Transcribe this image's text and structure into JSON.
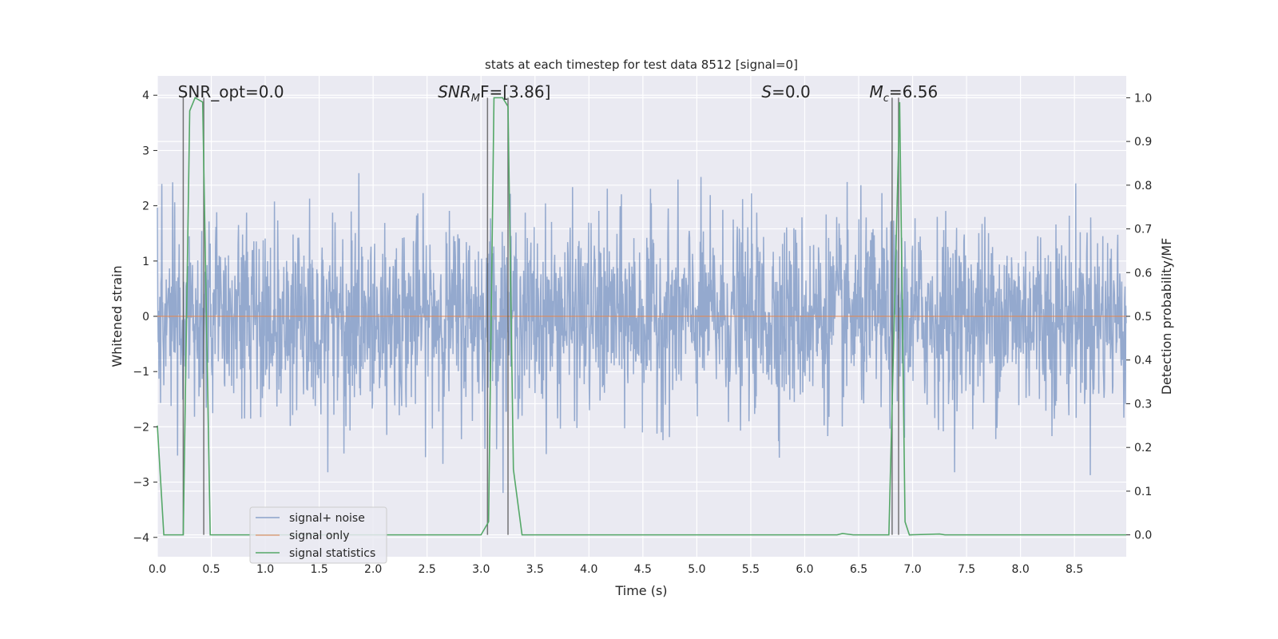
{
  "chart_data": {
    "type": "line",
    "title": "stats at each timestep for test data 8512 [signal=0]",
    "xlabel": "Time (s)",
    "ylabel": "Whitened strain",
    "ylabel_right": "Detection probability/MF",
    "xlim": [
      0,
      8.98
    ],
    "ylim": [
      -4.35,
      4.35
    ],
    "ylim_right": [
      -0.05,
      1.05
    ],
    "xticks": [
      "0.0",
      "0.5",
      "1.0",
      "1.5",
      "2.0",
      "2.5",
      "3.0",
      "3.5",
      "4.0",
      "4.5",
      "5.0",
      "5.5",
      "6.0",
      "6.5",
      "7.0",
      "7.5",
      "8.0",
      "8.5"
    ],
    "yticks": [
      "−4",
      "−3",
      "−2",
      "−1",
      "0",
      "1",
      "2",
      "3",
      "4"
    ],
    "yticks_right": [
      "0.0",
      "0.1",
      "0.2",
      "0.3",
      "0.4",
      "0.5",
      "0.6",
      "0.7",
      "0.8",
      "0.9",
      "1.0"
    ],
    "grid": true,
    "legend_position": "bottom-left",
    "series": [
      {
        "name": "signal+ noise",
        "color": "#4c72b0",
        "noise_std": 0.85,
        "n_samples": 2400,
        "amplitude_range": [
          -4.0,
          4.0
        ]
      },
      {
        "name": "signal only",
        "color": "#dd8452",
        "x": [
          0,
          8.98
        ],
        "y": [
          0,
          0
        ]
      },
      {
        "name": "signal statistics",
        "color": "#55a868",
        "axis": "right",
        "x": [
          0,
          0.06,
          0.24,
          0.3,
          0.35,
          0.42,
          0.49,
          3.0,
          3.07,
          3.12,
          3.2,
          3.25,
          3.3,
          3.38,
          6.3,
          6.35,
          6.45,
          6.78,
          6.88,
          6.93,
          6.97,
          7.25,
          7.3,
          8.98
        ],
        "y": [
          0.25,
          0.0,
          0.0,
          0.97,
          1.0,
          0.99,
          0.0,
          0.0,
          0.03,
          1.0,
          1.0,
          0.98,
          0.15,
          0.0,
          0.0,
          0.003,
          0.0,
          0.0,
          0.99,
          0.03,
          0.0,
          0.002,
          0.0,
          0.0
        ]
      }
    ],
    "vlines": {
      "color": "#555555",
      "x": [
        0.24,
        0.43,
        3.06,
        3.25,
        6.81,
        6.87
      ]
    },
    "annotations": [
      {
        "text": "SNR_opt=0.0",
        "x": 0.19
      },
      {
        "main": "SNR",
        "sub": "M",
        "rest": "F=[3.86]",
        "x": 2.6
      },
      {
        "main": "S",
        "sub": "",
        "rest": "=0.0",
        "x": 5.6
      },
      {
        "main": "M",
        "sub": "c",
        "rest": "=6.56",
        "x": 6.6
      }
    ]
  }
}
